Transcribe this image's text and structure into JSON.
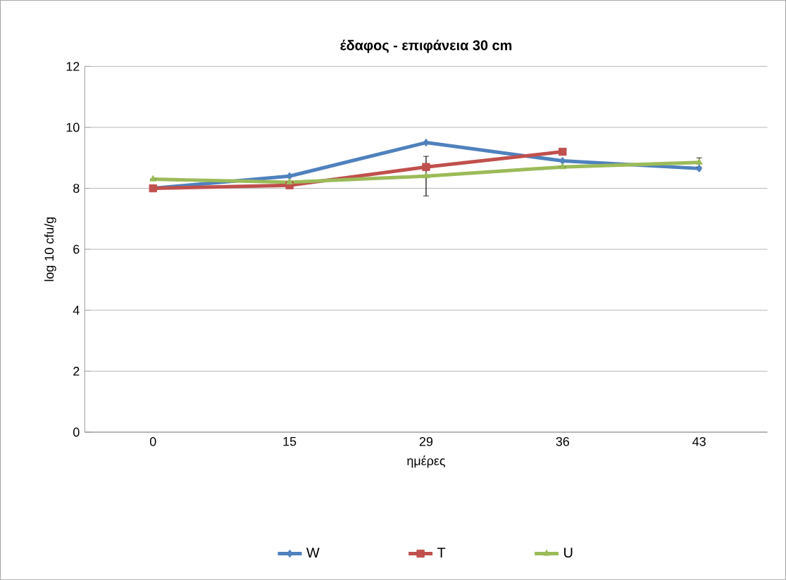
{
  "chart_data": {
    "type": "line",
    "title": "έδαφος - επιφάνεια 30 cm",
    "xlabel": "ημέρες",
    "ylabel": "log 10 cfu/g",
    "categories": [
      "0",
      "15",
      "29",
      "36",
      "43"
    ],
    "series": [
      {
        "name": "W",
        "color": "#4f81bd",
        "marker": "diamond",
        "values": [
          8.0,
          8.4,
          9.5,
          8.9,
          8.65
        ]
      },
      {
        "name": "T",
        "color": "#c0504d",
        "marker": "square",
        "values": [
          8.0,
          8.1,
          8.7,
          9.2,
          null
        ]
      },
      {
        "name": "U",
        "color": "#9bbb59",
        "marker": "triangle",
        "values": [
          8.3,
          8.2,
          8.4,
          8.7,
          8.85
        ],
        "errors": [
          null,
          null,
          0.65,
          null,
          0.15
        ]
      }
    ],
    "ylim": [
      0,
      12
    ],
    "yticks": [
      0,
      2,
      4,
      6,
      8,
      10,
      12
    ],
    "grid": "y",
    "legend": "bottom"
  }
}
